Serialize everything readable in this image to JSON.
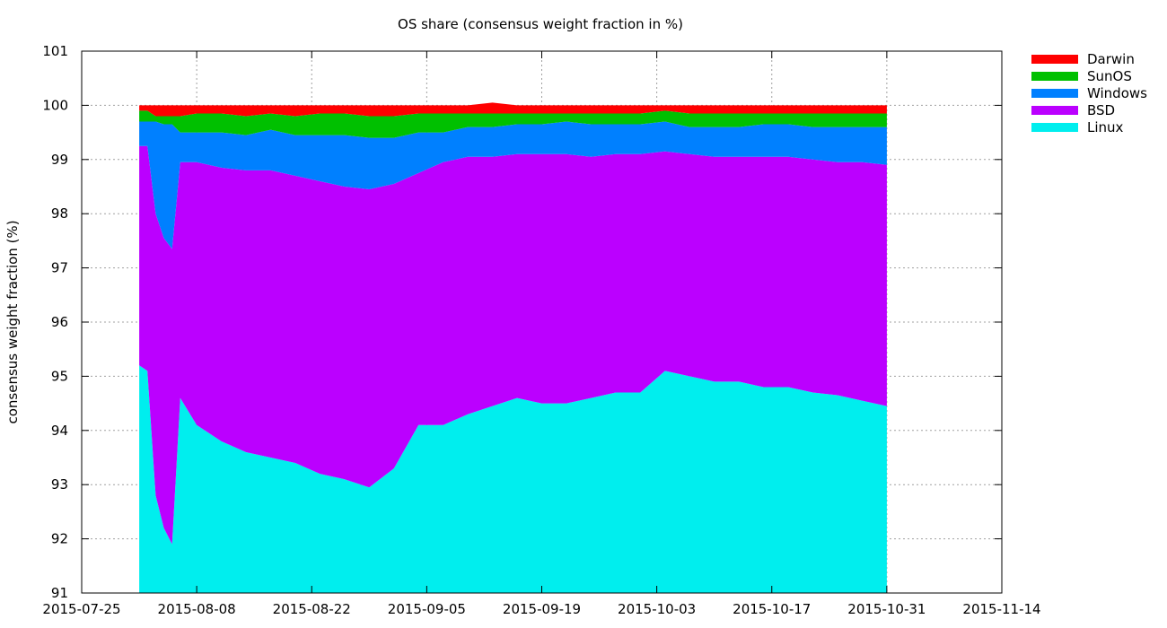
{
  "chart_data": {
    "type": "area",
    "title": "OS share (consensus weight fraction in %)",
    "xlabel": "",
    "ylabel": "consensus weight fraction (%)",
    "xlim": [
      "2015-07-25",
      "2015-11-14"
    ],
    "ylim": [
      91,
      101
    ],
    "grid": true,
    "legend_position": "top-right",
    "x_ticks": [
      "2015-07-25",
      "2015-08-08",
      "2015-08-22",
      "2015-09-05",
      "2015-09-19",
      "2015-10-03",
      "2015-10-17",
      "2015-10-31",
      "2015-11-14"
    ],
    "y_ticks": [
      91,
      92,
      93,
      94,
      95,
      96,
      97,
      98,
      99,
      100,
      101
    ],
    "stack_order": [
      "Linux",
      "BSD",
      "Windows",
      "SunOS",
      "Darwin"
    ],
    "legend_order": [
      "Darwin",
      "SunOS",
      "Windows",
      "BSD",
      "Linux"
    ],
    "x": [
      "2015-08-01",
      "2015-08-02",
      "2015-08-03",
      "2015-08-04",
      "2015-08-05",
      "2015-08-06",
      "2015-08-08",
      "2015-08-11",
      "2015-08-14",
      "2015-08-17",
      "2015-08-20",
      "2015-08-23",
      "2015-08-26",
      "2015-08-29",
      "2015-09-01",
      "2015-09-04",
      "2015-09-07",
      "2015-09-10",
      "2015-09-13",
      "2015-09-16",
      "2015-09-19",
      "2015-09-22",
      "2015-09-25",
      "2015-09-28",
      "2015-10-01",
      "2015-10-04",
      "2015-10-07",
      "2015-10-10",
      "2015-10-13",
      "2015-10-16",
      "2015-10-19",
      "2015-10-22",
      "2015-10-25",
      "2015-10-28",
      "2015-10-31"
    ],
    "series": [
      {
        "name": "Linux",
        "color": "#00eeee",
        "values": [
          95.2,
          95.1,
          92.8,
          92.2,
          91.9,
          94.6,
          94.1,
          93.8,
          93.6,
          93.5,
          93.4,
          93.2,
          93.1,
          92.95,
          93.3,
          94.1,
          94.1,
          94.3,
          94.45,
          94.6,
          94.5,
          94.5,
          94.6,
          94.7,
          94.7,
          95.1,
          95.0,
          94.9,
          94.9,
          94.8,
          94.8,
          94.7,
          94.65,
          94.55,
          94.45
        ]
      },
      {
        "name": "BSD",
        "color": "#bb00ff",
        "values": [
          4.05,
          4.15,
          5.2,
          5.35,
          5.45,
          4.35,
          4.85,
          5.05,
          5.2,
          5.3,
          5.3,
          5.4,
          5.4,
          5.5,
          5.25,
          4.65,
          4.85,
          4.75,
          4.6,
          4.5,
          4.6,
          4.6,
          4.45,
          4.4,
          4.4,
          4.05,
          4.1,
          4.15,
          4.15,
          4.25,
          4.25,
          4.3,
          4.3,
          4.4,
          4.45
        ]
      },
      {
        "name": "Windows",
        "color": "#0080ff",
        "values": [
          0.45,
          0.45,
          1.7,
          2.1,
          2.3,
          0.55,
          0.55,
          0.65,
          0.65,
          0.75,
          0.75,
          0.85,
          0.95,
          0.95,
          0.85,
          0.75,
          0.55,
          0.55,
          0.55,
          0.55,
          0.55,
          0.6,
          0.6,
          0.55,
          0.55,
          0.55,
          0.5,
          0.55,
          0.55,
          0.6,
          0.6,
          0.6,
          0.65,
          0.65,
          0.7
        ]
      },
      {
        "name": "SunOS",
        "color": "#00c000",
        "values": [
          0.2,
          0.2,
          0.1,
          0.15,
          0.15,
          0.3,
          0.35,
          0.35,
          0.35,
          0.3,
          0.35,
          0.4,
          0.4,
          0.4,
          0.4,
          0.35,
          0.35,
          0.25,
          0.25,
          0.2,
          0.2,
          0.15,
          0.2,
          0.2,
          0.2,
          0.2,
          0.25,
          0.25,
          0.25,
          0.2,
          0.2,
          0.25,
          0.25,
          0.25,
          0.25
        ]
      },
      {
        "name": "Darwin",
        "color": "#ff0000",
        "values": [
          0.1,
          0.1,
          0.2,
          0.2,
          0.2,
          0.2,
          0.15,
          0.15,
          0.2,
          0.15,
          0.2,
          0.15,
          0.15,
          0.2,
          0.2,
          0.15,
          0.15,
          0.15,
          0.2,
          0.15,
          0.15,
          0.15,
          0.15,
          0.15,
          0.15,
          0.1,
          0.15,
          0.15,
          0.15,
          0.15,
          0.15,
          0.15,
          0.15,
          0.15,
          0.15
        ]
      }
    ]
  }
}
